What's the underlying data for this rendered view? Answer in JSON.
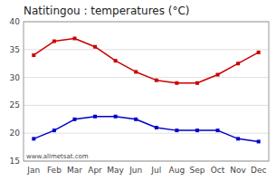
{
  "chart_data": {
    "type": "line",
    "title": "Natitingou : temperatures (°C)",
    "categories": [
      "Jan",
      "Feb",
      "Mar",
      "Apr",
      "May",
      "Jun",
      "Jul",
      "Aug",
      "Sep",
      "Oct",
      "Nov",
      "Dec"
    ],
    "series": [
      {
        "color": "#cc0000",
        "values": [
          34,
          36.5,
          37,
          35.5,
          33,
          31,
          29.5,
          29,
          29,
          30.5,
          32.5,
          34.5
        ]
      },
      {
        "color": "#0000cc",
        "values": [
          19,
          20.5,
          22.5,
          23,
          23,
          22.5,
          21,
          20.5,
          20.5,
          20.5,
          19,
          18.5
        ]
      }
    ],
    "ylim": [
      15,
      40
    ],
    "yticks": [
      15,
      20,
      25,
      30,
      35,
      40
    ],
    "grid": true,
    "marker": "square",
    "annotations": [
      "www.allmetsat.com"
    ]
  }
}
